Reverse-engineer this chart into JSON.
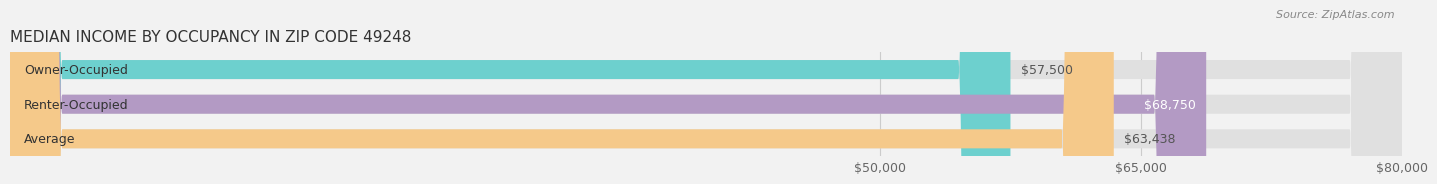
{
  "title": "MEDIAN INCOME BY OCCUPANCY IN ZIP CODE 49248",
  "source": "Source: ZipAtlas.com",
  "categories": [
    "Owner-Occupied",
    "Renter-Occupied",
    "Average"
  ],
  "values": [
    57500,
    68750,
    63438
  ],
  "bar_colors": [
    "#6dd0ce",
    "#b39ac4",
    "#f5c98a"
  ],
  "bar_labels": [
    "$57,500",
    "$68,750",
    "$63,438"
  ],
  "label_inside": [
    false,
    true,
    false
  ],
  "xmin": 0,
  "xmax": 80000,
  "xticks": [
    50000,
    65000,
    80000
  ],
  "xtick_labels": [
    "$50,000",
    "$65,000",
    "$80,000"
  ],
  "bar_height": 0.55,
  "background_color": "#f2f2f2",
  "bar_bg_color": "#e0e0e0",
  "title_fontsize": 11,
  "label_fontsize": 9,
  "tick_fontsize": 9,
  "cat_fontsize": 9
}
